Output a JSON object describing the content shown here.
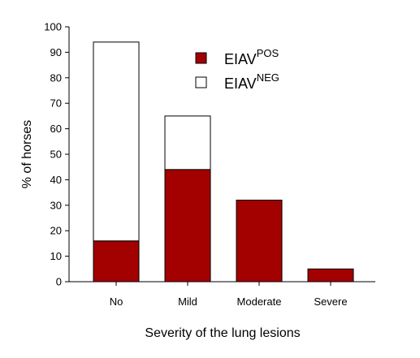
{
  "chart_data": {
    "type": "bar",
    "stacked": true,
    "categories": [
      "No",
      "Mild",
      "Moderate",
      "Severe"
    ],
    "series": [
      {
        "name": "EIAV",
        "name_superscript": "POS",
        "color": "#a30000",
        "values": [
          16,
          44,
          32,
          5
        ]
      },
      {
        "name": "EIAV",
        "name_superscript": "NEG",
        "color": "#ffffff",
        "values": [
          78,
          21,
          0,
          0
        ]
      }
    ],
    "title": "",
    "xlabel": "Severity of the lung lesions",
    "ylabel": "% of horses",
    "ylim": [
      0,
      100
    ],
    "yticks": [
      0,
      10,
      20,
      30,
      40,
      50,
      60,
      70,
      80,
      90,
      100
    ],
    "grid": false,
    "legend_position": "top-center"
  }
}
